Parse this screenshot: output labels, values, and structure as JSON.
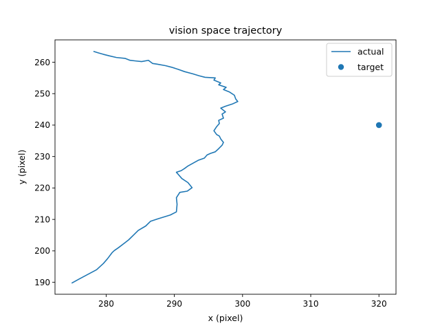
{
  "chart_data": {
    "type": "line",
    "title": "vision space trajectory",
    "xlabel": "x (pixel)",
    "ylabel": "y (pixel)",
    "xlim": [
      272.5,
      322.5
    ],
    "ylim": [
      186.2,
      267.1
    ],
    "xticks": [
      280,
      290,
      300,
      310,
      320
    ],
    "yticks": [
      190,
      200,
      210,
      220,
      230,
      240,
      250,
      260
    ],
    "legend_position": "upper right",
    "grid": false,
    "colors": {
      "series": "#1f77b4",
      "axes": "#000000"
    },
    "series": [
      {
        "name": "actual",
        "type": "line",
        "points": [
          [
            275.0,
            189.8
          ],
          [
            276.0,
            191.0
          ],
          [
            277.3,
            192.5
          ],
          [
            278.6,
            194.0
          ],
          [
            279.6,
            196.0
          ],
          [
            280.2,
            197.5
          ],
          [
            280.9,
            199.5
          ],
          [
            281.2,
            200.1
          ],
          [
            281.8,
            201.0
          ],
          [
            282.7,
            202.5
          ],
          [
            283.3,
            203.5
          ],
          [
            284.0,
            205.0
          ],
          [
            284.7,
            206.5
          ],
          [
            285.8,
            207.9
          ],
          [
            286.5,
            209.4
          ],
          [
            287.6,
            210.2
          ],
          [
            289.4,
            211.4
          ],
          [
            290.3,
            212.4
          ],
          [
            290.4,
            214.8
          ],
          [
            290.3,
            216.9
          ],
          [
            290.8,
            218.6
          ],
          [
            291.9,
            219.0
          ],
          [
            292.6,
            220.1
          ],
          [
            292.0,
            221.7
          ],
          [
            291.1,
            223.0
          ],
          [
            290.3,
            225.0
          ],
          [
            291.0,
            225.5
          ],
          [
            291.5,
            226.2
          ],
          [
            292.0,
            227.0
          ],
          [
            293.5,
            228.8
          ],
          [
            294.4,
            229.5
          ],
          [
            294.8,
            230.5
          ],
          [
            295.3,
            231.0
          ],
          [
            296.0,
            231.5
          ],
          [
            296.5,
            232.5
          ],
          [
            297.0,
            233.6
          ],
          [
            297.2,
            234.5
          ],
          [
            296.8,
            235.6
          ],
          [
            296.6,
            236.5
          ],
          [
            296.2,
            237.0
          ],
          [
            295.8,
            238.2
          ],
          [
            296.2,
            239.5
          ],
          [
            296.6,
            240.5
          ],
          [
            296.5,
            241.5
          ],
          [
            297.2,
            242.2
          ],
          [
            297.0,
            243.5
          ],
          [
            297.5,
            244.2
          ],
          [
            296.8,
            245.4
          ],
          [
            297.5,
            246.0
          ],
          [
            298.5,
            246.7
          ],
          [
            299.3,
            247.5
          ],
          [
            299.0,
            248.3
          ],
          [
            298.8,
            249.5
          ],
          [
            298.1,
            250.5
          ],
          [
            297.2,
            251.3
          ],
          [
            297.6,
            252.0
          ],
          [
            296.5,
            252.8
          ],
          [
            296.8,
            253.4
          ],
          [
            295.8,
            254.3
          ],
          [
            296.0,
            255.0
          ],
          [
            294.5,
            255.2
          ],
          [
            293.6,
            255.7
          ],
          [
            292.7,
            256.3
          ],
          [
            291.5,
            257.0
          ],
          [
            290.6,
            257.7
          ],
          [
            289.6,
            258.4
          ],
          [
            288.7,
            258.9
          ],
          [
            287.4,
            259.4
          ],
          [
            286.8,
            259.6
          ],
          [
            286.2,
            260.6
          ],
          [
            285.2,
            260.2
          ],
          [
            284.3,
            260.4
          ],
          [
            283.5,
            260.6
          ],
          [
            282.8,
            261.2
          ],
          [
            281.5,
            261.5
          ],
          [
            280.5,
            262.0
          ],
          [
            279.6,
            262.5
          ],
          [
            278.8,
            263.0
          ],
          [
            278.2,
            263.4
          ]
        ]
      },
      {
        "name": "target",
        "type": "scatter",
        "points": [
          [
            320.0,
            240.0
          ]
        ]
      }
    ]
  }
}
